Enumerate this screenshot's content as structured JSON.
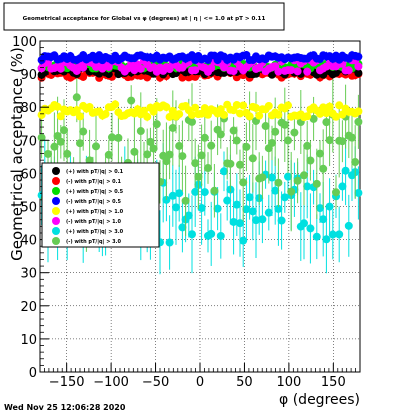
{
  "title": "Geometrical acceptance for Global vs φ (degrees) at | η | <= 1.0 at pT > 0.11",
  "footer_timestamp": "Wed Nov 25 12:06:28 2020",
  "chart_data": {
    "type": "scatter",
    "xlabel": "φ (degrees)",
    "ylabel": "Geometrical acceptance (%)",
    "xlim": [
      -180,
      180
    ],
    "ylim": [
      0,
      100
    ],
    "x_ticks": [
      -150,
      -100,
      -50,
      0,
      50,
      100,
      150
    ],
    "x_tick_labels": [
      "−150",
      "−100",
      "−50",
      "0",
      "50",
      "100",
      "150"
    ],
    "y_ticks": [
      0,
      10,
      20,
      30,
      40,
      50,
      60,
      70,
      80,
      90,
      100
    ],
    "y_tick_labels": [
      "0",
      "10",
      "20",
      "30",
      "40",
      "50",
      "60",
      "70",
      "80",
      "90",
      "100"
    ],
    "grid": true,
    "legend_placement": "middle-left",
    "series": [
      {
        "name": "(+) with pT/|q| > 0.1",
        "color": "#000000",
        "level": 91
      },
      {
        "name": "(-) with pT/|q| > 0.1",
        "color": "#ff0000",
        "level": 90
      },
      {
        "name": "(+) with pT/|q| > 0.5",
        "color": "#00dd00",
        "level": 92.5
      },
      {
        "name": "(-) with pT/|q| > 0.5",
        "color": "#0000ff",
        "level": 95
      },
      {
        "name": "(+) with pT/|q| > 1.0",
        "color": "#ffff00",
        "level": 79
      },
      {
        "name": "(-) with pT/|q| > 1.0",
        "color": "#ff00ff",
        "level": 92.5
      },
      {
        "name": "(+) with pT/|q| > 3.0",
        "color": "#00e0e0",
        "level": 50
      },
      {
        "name": "(-) with pT/|q| > 3.0",
        "color": "#66cc55",
        "level": 66
      }
    ]
  }
}
